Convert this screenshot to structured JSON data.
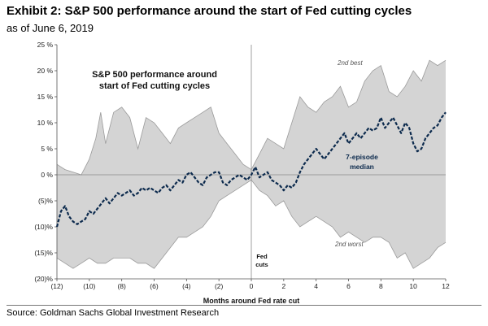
{
  "header": {
    "title": "Exhibit 2: S&P 500 performance around the start of Fed cutting cycles",
    "subtitle": "as of June 6, 2019"
  },
  "source": "Source: Goldman Sachs Global Investment Research",
  "chart_data": {
    "type": "area",
    "title": "S&P 500 performance around start of Fed cutting cycles",
    "title_lines": [
      "S&P 500 performance around",
      "start of Fed cutting cycles"
    ],
    "xlabel": "Months around Fed rate cut",
    "ylabel": "",
    "xlim": [
      -12,
      12
    ],
    "ylim": [
      -20,
      25
    ],
    "x_ticks": [
      -12,
      -10,
      -8,
      -6,
      -4,
      -2,
      0,
      2,
      4,
      6,
      8,
      10,
      12
    ],
    "x_tick_labels": [
      "(12)",
      "(10)",
      "(8)",
      "(6)",
      "(4)",
      "(2)",
      "0",
      "2",
      "4",
      "6",
      "8",
      "10",
      "12"
    ],
    "y_ticks": [
      25,
      20,
      15,
      10,
      5,
      0,
      -5,
      -10,
      -15,
      -20
    ],
    "y_tick_labels": [
      "25 %",
      "20 %",
      "15 %",
      "10 %",
      "5 %",
      "0 %",
      "(5)%",
      "(10)%",
      "(15)%",
      "(20)%"
    ],
    "grid": false,
    "reference_lines": {
      "y": 0,
      "x": 0
    },
    "annotations": {
      "best": "2nd best",
      "worst": "2nd worst",
      "median_lines": [
        "7-episode",
        "median"
      ],
      "fed_lines": [
        "Fed",
        "cuts"
      ]
    },
    "series": [
      {
        "name": "2nd best",
        "role": "upper band",
        "x": [
          -12,
          -11.5,
          -11,
          -10.5,
          -10,
          -9.6,
          -9.3,
          -9,
          -8.5,
          -8,
          -7.5,
          -7,
          -6.5,
          -6,
          -5.5,
          -5,
          -4.5,
          -4,
          -3.5,
          -3,
          -2.5,
          -2,
          -1.5,
          -1,
          -0.5,
          0,
          0.5,
          1,
          1.5,
          2,
          2.5,
          3,
          3.5,
          4,
          4.5,
          5,
          5.5,
          6,
          6.5,
          7,
          7.5,
          8,
          8.5,
          9,
          9.5,
          10,
          10.5,
          11,
          11.5,
          12
        ],
        "values": [
          2,
          1,
          0.5,
          0,
          3,
          7,
          12,
          6,
          12,
          13,
          11,
          5,
          11,
          10,
          8,
          6,
          9,
          10,
          11,
          12,
          13,
          8,
          6,
          4,
          2,
          1,
          4,
          7,
          6,
          5,
          10,
          15,
          13,
          12,
          14,
          15,
          17,
          13,
          14,
          18,
          20,
          21,
          16,
          15,
          17,
          20,
          18,
          22,
          21,
          22
        ]
      },
      {
        "name": "2nd worst",
        "role": "lower band",
        "x": [
          -12,
          -11.5,
          -11,
          -10.5,
          -10,
          -9.5,
          -9,
          -8.5,
          -8,
          -7.5,
          -7,
          -6.5,
          -6,
          -5.5,
          -5,
          -4.5,
          -4,
          -3.5,
          -3,
          -2.5,
          -2,
          -1.5,
          -1,
          -0.5,
          0,
          0.5,
          1,
          1.5,
          2,
          2.5,
          3,
          3.5,
          4,
          4.5,
          5,
          5.5,
          6,
          6.5,
          7,
          7.5,
          8,
          8.5,
          9,
          9.5,
          10,
          10.5,
          11,
          11.5,
          12
        ],
        "values": [
          -16,
          -17,
          -18,
          -17,
          -16,
          -17,
          -17,
          -16,
          -16,
          -16,
          -17,
          -17,
          -18,
          -16,
          -14,
          -12,
          -12,
          -11,
          -10,
          -8,
          -5,
          -4,
          -3,
          -2,
          -1,
          -3,
          -4,
          -6,
          -5,
          -8,
          -10,
          -9,
          -8,
          -9,
          -10,
          -12,
          -11,
          -12,
          -13,
          -12,
          -12,
          -13,
          -16,
          -15,
          -18,
          -17,
          -16,
          -14,
          -13
        ]
      },
      {
        "name": "7-episode median",
        "role": "median",
        "x": [
          -12,
          -11.75,
          -11.5,
          -11.25,
          -11,
          -10.75,
          -10.5,
          -10.25,
          -10,
          -9.75,
          -9.5,
          -9.25,
          -9,
          -8.75,
          -8.5,
          -8.25,
          -8,
          -7.75,
          -7.5,
          -7.25,
          -7,
          -6.75,
          -6.5,
          -6.25,
          -6,
          -5.75,
          -5.5,
          -5.25,
          -5,
          -4.75,
          -4.5,
          -4.25,
          -4,
          -3.75,
          -3.5,
          -3.25,
          -3,
          -2.75,
          -2.5,
          -2.25,
          -2,
          -1.75,
          -1.5,
          -1.25,
          -1,
          -0.75,
          -0.5,
          -0.25,
          0,
          0.25,
          0.5,
          0.75,
          1,
          1.25,
          1.5,
          1.75,
          2,
          2.25,
          2.5,
          2.75,
          3,
          3.25,
          3.5,
          3.75,
          4,
          4.25,
          4.5,
          4.75,
          5,
          5.25,
          5.5,
          5.75,
          6,
          6.25,
          6.5,
          6.75,
          7,
          7.25,
          7.5,
          7.75,
          8,
          8.25,
          8.5,
          8.75,
          9,
          9.25,
          9.5,
          9.75,
          10,
          10.25,
          10.5,
          10.75,
          11,
          11.25,
          11.5,
          11.75,
          12
        ],
        "values": [
          -10,
          -7,
          -6,
          -8,
          -9,
          -9.5,
          -9,
          -8.5,
          -7,
          -7.5,
          -6.5,
          -5.5,
          -4.5,
          -5.5,
          -4.5,
          -3.5,
          -4,
          -3.5,
          -3,
          -4,
          -3.5,
          -2.5,
          -3,
          -2.5,
          -3,
          -3.5,
          -2.5,
          -2,
          -3,
          -2,
          -1,
          -1.5,
          0,
          0.5,
          -0.5,
          -1.5,
          -2,
          -0.5,
          0,
          0.5,
          0.5,
          -1.5,
          -2,
          -1,
          -0.5,
          0,
          -0.5,
          -1,
          0,
          1.5,
          -0.5,
          0,
          0.5,
          -1,
          -1.5,
          -2,
          -3,
          -2,
          -2.5,
          -1.5,
          0.5,
          2,
          3,
          4,
          5,
          4,
          3,
          4,
          5,
          6,
          7,
          8,
          6,
          7,
          8,
          7,
          8,
          9,
          8.5,
          9,
          11,
          9,
          10,
          11,
          9.5,
          8,
          10,
          9,
          6,
          4.5,
          5,
          7,
          8,
          9,
          9.5,
          11,
          12
        ]
      }
    ]
  }
}
